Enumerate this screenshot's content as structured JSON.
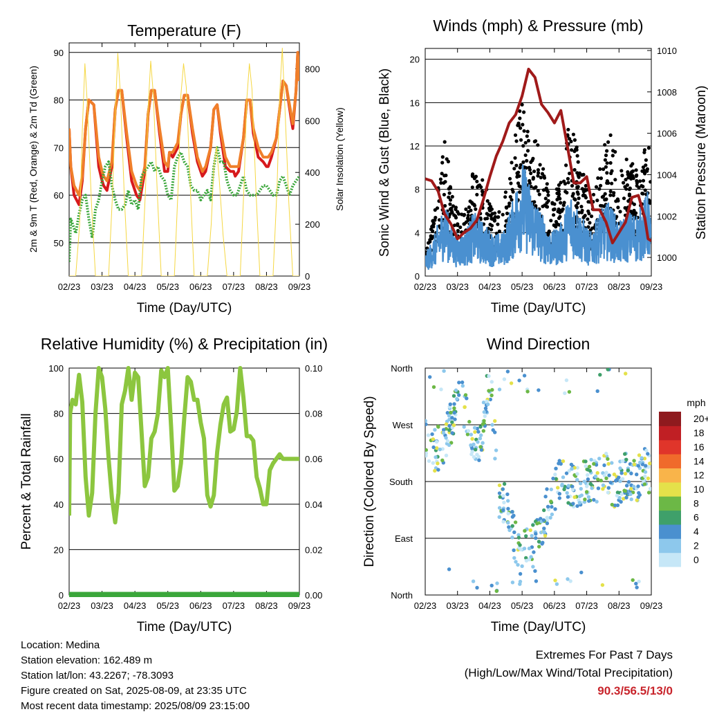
{
  "x_ticks": [
    "02/23",
    "03/23",
    "04/23",
    "05/23",
    "06/23",
    "07/23",
    "08/23",
    "09/23"
  ],
  "colors": {
    "t2m": "#d7191c",
    "t9m": "#f07f2a",
    "td": "#3aa63a",
    "solar": "#f5d742",
    "gust": "#000000",
    "wind": "#4a90d0",
    "pressure": "#a01a1a",
    "rh": "#8cc63f",
    "precip": "#3aa63a"
  },
  "chart_data": [
    {
      "type": "line",
      "title": "Temperature (F)",
      "xlabel": "Time (Day/UTC)",
      "ylabel": "2m & 9m T (Red, Orange) & 2m Td (Green)",
      "y2label": "Solar Insolation (Yellow)",
      "ylim": [
        43,
        92
      ],
      "ytick_values": [
        50,
        60,
        70,
        80,
        90
      ],
      "y2lim": [
        0,
        900
      ],
      "y2tick_values": [
        0,
        200,
        400,
        600,
        800
      ],
      "x_days": [
        0,
        7
      ],
      "series": [
        {
          "key": "t2m",
          "x": [
            0,
            0.05,
            0.15,
            0.3,
            0.4,
            0.5,
            0.6,
            0.75,
            0.9,
            1.0,
            1.05,
            1.15,
            1.3,
            1.4,
            1.5,
            1.6,
            1.75,
            1.9,
            2.0,
            2.05,
            2.15,
            2.3,
            2.4,
            2.5,
            2.6,
            2.75,
            2.9,
            3.0,
            3.05,
            3.15,
            3.3,
            3.4,
            3.5,
            3.6,
            3.75,
            3.9,
            4.0,
            4.05,
            4.15,
            4.3,
            4.4,
            4.5,
            4.6,
            4.75,
            4.9,
            5.0,
            5.05,
            5.15,
            5.3,
            5.4,
            5.5,
            5.6,
            5.75,
            5.9,
            6.0,
            6.05,
            6.15,
            6.3,
            6.4,
            6.5,
            6.6,
            6.75,
            6.8,
            6.9,
            6.95,
            7.0
          ],
          "y": [
            74,
            66,
            60,
            58,
            63,
            74,
            80,
            79,
            66,
            63,
            62,
            61,
            66,
            78,
            82,
            82,
            72,
            63,
            61,
            60,
            59,
            65,
            77,
            82,
            82,
            73,
            65,
            65,
            69,
            68,
            70,
            77,
            81,
            81,
            73,
            67,
            65,
            64,
            65,
            70,
            78,
            79,
            73,
            66,
            65,
            65,
            64,
            65,
            72,
            80,
            80,
            73,
            68,
            67,
            66,
            66,
            68,
            72,
            78,
            84,
            83,
            76,
            74,
            82,
            90,
            84
          ]
        },
        {
          "key": "t9m",
          "x": [
            0,
            0.05,
            0.15,
            0.3,
            0.4,
            0.5,
            0.6,
            0.75,
            0.9,
            1.0,
            1.05,
            1.15,
            1.3,
            1.4,
            1.5,
            1.6,
            1.75,
            1.9,
            2.0,
            2.05,
            2.15,
            2.3,
            2.4,
            2.5,
            2.6,
            2.75,
            2.9,
            3.0,
            3.05,
            3.15,
            3.3,
            3.4,
            3.5,
            3.6,
            3.75,
            3.9,
            4.0,
            4.05,
            4.15,
            4.3,
            4.4,
            4.5,
            4.6,
            4.75,
            4.9,
            5.0,
            5.05,
            5.15,
            5.3,
            5.4,
            5.5,
            5.6,
            5.75,
            5.9,
            6.0,
            6.05,
            6.15,
            6.3,
            6.4,
            6.5,
            6.6,
            6.75,
            6.8,
            6.9,
            6.95,
            7.0
          ],
          "y": [
            74,
            66,
            62,
            60,
            64,
            74,
            80,
            79,
            68,
            65,
            64,
            63,
            67,
            78,
            82,
            82,
            73,
            65,
            63,
            62,
            61,
            66,
            77,
            82,
            82,
            74,
            67,
            66,
            69,
            69,
            71,
            77,
            81,
            81,
            74,
            68,
            66,
            65,
            66,
            70,
            78,
            79,
            74,
            68,
            66,
            66,
            66,
            66,
            72,
            80,
            80,
            74,
            70,
            68,
            68,
            68,
            69,
            72,
            78,
            84,
            83,
            77,
            75,
            82,
            90,
            84
          ]
        },
        {
          "key": "td",
          "x": [
            0,
            0.05,
            0.1,
            0.2,
            0.3,
            0.4,
            0.5,
            0.6,
            0.7,
            0.8,
            0.9,
            1.0,
            1.1,
            1.2,
            1.3,
            1.4,
            1.5,
            1.6,
            1.7,
            1.8,
            1.9,
            2.0,
            2.1,
            2.2,
            2.3,
            2.4,
            2.5,
            2.6,
            2.7,
            2.8,
            2.9,
            3.0,
            3.1,
            3.2,
            3.3,
            3.4,
            3.5,
            3.6,
            3.7,
            3.8,
            3.9,
            4.0,
            4.1,
            4.2,
            4.3,
            4.4,
            4.5,
            4.6,
            4.7,
            4.8,
            4.9,
            5.0,
            5.1,
            5.2,
            5.3,
            5.4,
            5.5,
            5.6,
            5.7,
            5.8,
            5.9,
            6.0,
            6.1,
            6.2,
            6.3,
            6.4,
            6.5,
            6.6,
            6.7,
            6.8,
            6.9,
            7.0
          ],
          "y": [
            46,
            55,
            54,
            52,
            56,
            59,
            60,
            55,
            51,
            57,
            59,
            63,
            66,
            67,
            62,
            59,
            57,
            57,
            58,
            61,
            58,
            59,
            57,
            64,
            65,
            66,
            67,
            65,
            66,
            64,
            63,
            60,
            59,
            66,
            68,
            69,
            67,
            66,
            62,
            61,
            61,
            59,
            60,
            61,
            59,
            66,
            70,
            67,
            67,
            63,
            61,
            60,
            60,
            62,
            64,
            61,
            60,
            60,
            60,
            61,
            62,
            62,
            61,
            60,
            60,
            63,
            64,
            62,
            60,
            62,
            63,
            64
          ]
        },
        {
          "key": "solar",
          "x": [
            0,
            0.2,
            0.32,
            0.4,
            0.48,
            0.56,
            0.68,
            0.8,
            1.0,
            1.2,
            1.32,
            1.4,
            1.48,
            1.56,
            1.68,
            1.8,
            2.0,
            2.2,
            2.32,
            2.4,
            2.48,
            2.56,
            2.68,
            2.8,
            3.0,
            3.2,
            3.32,
            3.4,
            3.48,
            3.56,
            3.68,
            3.8,
            4.0,
            4.2,
            4.32,
            4.4,
            4.48,
            4.56,
            4.68,
            4.8,
            5.0,
            5.2,
            5.32,
            5.4,
            5.48,
            5.56,
            5.68,
            5.8,
            6.0,
            6.2,
            6.32,
            6.4,
            6.48,
            6.56,
            6.68,
            6.8,
            7.0
          ],
          "y": [
            0,
            0,
            200,
            560,
            820,
            650,
            280,
            0,
            0,
            0,
            320,
            620,
            860,
            700,
            300,
            0,
            0,
            0,
            330,
            650,
            830,
            700,
            320,
            0,
            0,
            0,
            360,
            700,
            820,
            730,
            350,
            0,
            0,
            0,
            200,
            420,
            500,
            380,
            160,
            0,
            0,
            0,
            360,
            680,
            820,
            720,
            330,
            0,
            0,
            0,
            340,
            700,
            880,
            650,
            280,
            0,
            0
          ]
        }
      ]
    },
    {
      "type": "scatter",
      "title": "Winds (mph) & Pressure (mb)",
      "xlabel": "Time (Day/UTC)",
      "ylabel": "Sonic Wind & Gust (Blue, Black)",
      "y2label": "Station Pressure (Maroon)",
      "ylim": [
        0,
        21
      ],
      "ytick_values": [
        0,
        4,
        8,
        12,
        16,
        20
      ],
      "y2lim": [
        999.1,
        1010.1
      ],
      "y2tick_values": [
        1000,
        1002,
        1004,
        1006,
        1008,
        1010
      ],
      "x_days": [
        0,
        7
      ],
      "wind_envelope": {
        "x": [
          0,
          0.3,
          0.6,
          0.9,
          1.2,
          1.5,
          1.8,
          2.1,
          2.4,
          2.7,
          3.0,
          3.3,
          3.6,
          3.9,
          4.2,
          4.5,
          4.8,
          5.1,
          5.4,
          5.7,
          6.0,
          6.3,
          6.6,
          6.9,
          7.0
        ],
        "y": [
          2,
          4,
          7,
          4,
          4,
          6,
          5,
          4,
          4,
          7,
          11,
          8,
          6,
          4,
          5,
          8,
          6,
          4,
          6,
          7,
          5,
          6,
          6,
          8,
          5
        ]
      },
      "gust_envelope": {
        "x": [
          0,
          0.3,
          0.6,
          0.9,
          1.2,
          1.5,
          1.8,
          2.1,
          2.4,
          2.7,
          3.0,
          3.3,
          3.6,
          3.9,
          4.2,
          4.5,
          4.8,
          5.1,
          5.4,
          5.7,
          6.0,
          6.3,
          6.6,
          6.9,
          7.0
        ],
        "y": [
          3,
          6,
          13,
          7,
          6,
          10,
          9,
          6,
          6,
          12,
          17,
          14,
          11,
          7,
          9,
          15,
          11,
          7,
          10,
          14,
          10,
          11,
          10,
          13,
          9
        ]
      },
      "pressure": {
        "x": [
          0,
          0.2,
          0.4,
          0.6,
          0.8,
          1.0,
          1.2,
          1.4,
          1.6,
          1.8,
          2.0,
          2.2,
          2.4,
          2.6,
          2.8,
          3.0,
          3.2,
          3.4,
          3.6,
          3.8,
          4.0,
          4.2,
          4.4,
          4.6,
          4.8,
          5.0,
          5.2,
          5.4,
          5.6,
          5.8,
          6.0,
          6.2,
          6.4,
          6.6,
          6.8,
          6.9,
          7.0
        ],
        "y": [
          1003.8,
          1003.7,
          1003.2,
          1002.1,
          1001.6,
          1000.9,
          1001.2,
          1001.4,
          1001.8,
          1002.8,
          1003.9,
          1004.9,
          1005.6,
          1006.5,
          1006.9,
          1007.8,
          1009.1,
          1008.7,
          1007.4,
          1007.0,
          1006.5,
          1007.1,
          1005.4,
          1003.6,
          1003.6,
          1003.9,
          1002.3,
          1002.3,
          1001.7,
          1000.7,
          1001.2,
          1001.7,
          1002.9,
          1003.0,
          1001.9,
          1000.9,
          1000.8
        ]
      }
    },
    {
      "type": "line",
      "title": "Relative Humidity (%) & Precipitation (in)",
      "xlabel": "Time (Day/UTC)",
      "ylabel": "Percent & Total Rainfall",
      "ylim": [
        0,
        100
      ],
      "ytick_values": [
        0,
        20,
        40,
        60,
        80,
        100
      ],
      "y2lim": [
        0,
        0.1
      ],
      "y2tick_labels": [
        "0.00",
        "0.02",
        "0.04",
        "0.06",
        "0.08",
        "0.10"
      ],
      "x_days": [
        0,
        7
      ],
      "series": [
        {
          "key": "rh",
          "x": [
            0,
            0.03,
            0.1,
            0.2,
            0.3,
            0.4,
            0.5,
            0.6,
            0.7,
            0.8,
            0.9,
            1.0,
            1.1,
            1.2,
            1.3,
            1.4,
            1.5,
            1.6,
            1.7,
            1.8,
            1.9,
            2.0,
            2.1,
            2.2,
            2.3,
            2.4,
            2.5,
            2.6,
            2.7,
            2.8,
            2.9,
            3.0,
            3.1,
            3.2,
            3.3,
            3.4,
            3.5,
            3.6,
            3.7,
            3.8,
            3.9,
            4.0,
            4.1,
            4.2,
            4.3,
            4.4,
            4.5,
            4.6,
            4.7,
            4.8,
            4.9,
            5.0,
            5.1,
            5.2,
            5.3,
            5.4,
            5.5,
            5.6,
            5.7,
            5.8,
            5.9,
            6.0,
            6.1,
            6.2,
            6.3,
            6.4,
            6.5,
            6.6,
            6.7,
            6.8,
            6.9,
            7.0
          ],
          "y": [
            35,
            80,
            86,
            84,
            97,
            85,
            52,
            35,
            45,
            80,
            100,
            96,
            82,
            60,
            43,
            32,
            45,
            84,
            90,
            100,
            86,
            98,
            96,
            72,
            48,
            52,
            69,
            72,
            80,
            99,
            96,
            100,
            74,
            46,
            48,
            58,
            78,
            96,
            94,
            86,
            86,
            76,
            69,
            44,
            39,
            44,
            63,
            75,
            84,
            87,
            72,
            73,
            81,
            100,
            87,
            70,
            70,
            68,
            52,
            47,
            40,
            40,
            55,
            58,
            60,
            62,
            60,
            60,
            60,
            60,
            60,
            60
          ]
        },
        {
          "key": "precip",
          "x": [
            0,
            7
          ],
          "y": [
            0,
            0
          ]
        }
      ]
    },
    {
      "type": "scatter",
      "title": "Wind Direction",
      "xlabel": "Time (Day/UTC)",
      "ylabel": "Direction (Colored By Speed)",
      "ytick_labels": [
        "North",
        "East",
        "South",
        "West",
        "North"
      ],
      "ytick_degrees": [
        0,
        90,
        180,
        270,
        360
      ],
      "x_days": [
        0,
        7
      ],
      "direction_trend": {
        "x": [
          0,
          0.3,
          0.6,
          0.9,
          1.1,
          1.4,
          1.7,
          2.0,
          2.3,
          2.6,
          2.9,
          3.2,
          3.5,
          3.8,
          4.1,
          4.4,
          4.7,
          5.0,
          5.3,
          5.6,
          5.9,
          6.2,
          6.5,
          6.8,
          7.0
        ],
        "y": [
          245,
          230,
          240,
          290,
          320,
          255,
          240,
          345,
          155,
          130,
          60,
          90,
          90,
          140,
          180,
          180,
          170,
          185,
          180,
          190,
          170,
          190,
          180,
          200,
          195
        ]
      },
      "colorbar": {
        "title": "mph",
        "labels": [
          "0",
          "2",
          "4",
          "6",
          "8",
          "10",
          "12",
          "14",
          "16",
          "18",
          "20+"
        ],
        "colors": [
          "#c6e7f7",
          "#8dc8ec",
          "#4a90cf",
          "#3fa06a",
          "#6cb846",
          "#e4e14a",
          "#f9b44a",
          "#f06a2b",
          "#e0352a",
          "#c01f24",
          "#8e1a1e"
        ]
      }
    }
  ],
  "info": {
    "location": "Location: Medina",
    "elevation": "Station elevation: 162.489 m",
    "latlon": "Station lat/lon: 43.2267; -78.3093",
    "created": "Figure created on Sat, 2025-08-09, at 23:35 UTC",
    "recent": "Most recent data timestamp: 2025/08/09 23:15:00"
  },
  "extremes": {
    "heading": "Extremes For Past 7 Days",
    "subheading": "(High/Low/Max Wind/Total Precipitation)",
    "values": "90.3/56.5/13/0"
  }
}
